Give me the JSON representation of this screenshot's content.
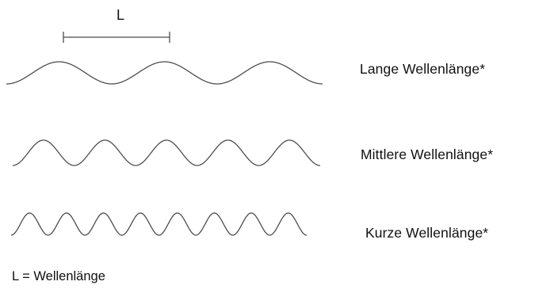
{
  "diagram": {
    "scale_bar": {
      "letter": "L"
    },
    "waves": [
      {
        "id": "long",
        "label": "Lange Wellenlänge*",
        "cycles": 3
      },
      {
        "id": "medium",
        "label": "Mittlere Wellenlänge*",
        "cycles": 5
      },
      {
        "id": "short",
        "label": "Kurze Wellenlänge*",
        "cycles": 8
      }
    ],
    "legend": "L = Wellenlänge",
    "colors": {
      "stroke": "#4d4d4d",
      "text": "#111111"
    }
  }
}
